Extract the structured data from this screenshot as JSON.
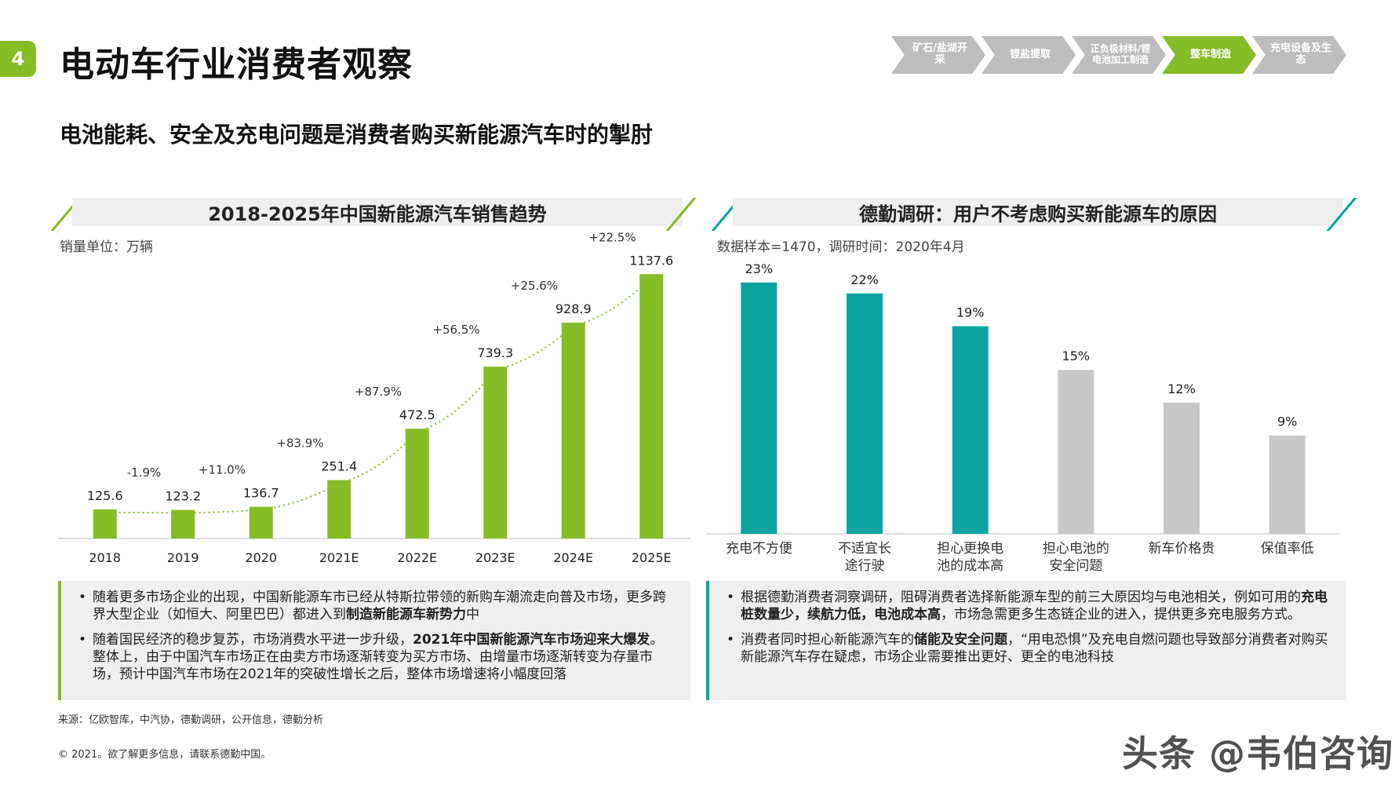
{
  "header": {
    "section_number": "4",
    "title": "电动车行业消费者观察",
    "subtitle": "电池能耗、安全及充电问题是消费者购买新能源汽车时的掣肘"
  },
  "process_steps": [
    {
      "label": "矿石/盐湖开采",
      "active": false
    },
    {
      "label": "锂盐提取",
      "active": false
    },
    {
      "label": "正负极材料/锂电池加工制造",
      "active": false
    },
    {
      "label": "整车制造",
      "active": true
    },
    {
      "label": "充电设备及生态",
      "active": false
    }
  ],
  "left_panel": {
    "title": "2018-2025年中国新能源汽车销售趋势",
    "unit_note": "销量单位：万辆",
    "notes": [
      {
        "pre": "随着更多市场企业的出现，中国新能源车市已经从特斯拉带领的新购车潮流走向普及市场，更多跨界大型企业（如恒大、阿里巴巴）都进入到",
        "bold": "制造新能源车新势力",
        "post": "中"
      },
      {
        "pre": "随着国民经济的稳步复苏，市场消费水平进一步升级，",
        "bold": "2021年中国新能源汽车市场迎来大爆发",
        "post": "。整体上，由于中国汽车市场正在由卖方市场逐渐转变为买方市场、由增量市场逐渐转变为存量市场，预计中国汽车市场在2021年的突破性增长之后，整体市场增速将小幅度回落"
      }
    ]
  },
  "right_panel": {
    "title": "德勤调研：用户不考虑购买新能源车的原因",
    "sample_note": "数据样本=1470，调研时间：2020年4月",
    "notes": [
      {
        "pre": "根据德勤消费者洞察调研，阻碍消费者选择新能源车型的前三大原因均与电池相关，例如可用的",
        "bold": "充电桩数量少，续航力低，电池成本高",
        "post": "，市场急需更多生态链企业的进入，提供更多充电服务方式。"
      },
      {
        "pre": "消费者同时担心新能源汽车的",
        "bold": "储能及安全问题",
        "post": "，“用电恐惧”及充电自燃问题也导致部分消费者对购买新能源汽车存在疑虑，市场企业需要推出更好、更全的电池科技"
      }
    ]
  },
  "chart_data": [
    {
      "type": "bar",
      "title": "2018-2025年中国新能源汽车销售趋势",
      "categories": [
        "2018",
        "2019",
        "2020",
        "2021E",
        "2022E",
        "2023E",
        "2024E",
        "2025E"
      ],
      "values": [
        125.6,
        123.2,
        136.7,
        251.4,
        472.5,
        739.3,
        928.9,
        1137.6
      ],
      "value_labels": [
        "125.6",
        "123.2",
        "136.7",
        "251.4",
        "472.5",
        "739.3",
        "928.9",
        "1137.6"
      ],
      "growth_labels": [
        "-1.9%",
        "+11.0%",
        "+83.9%",
        "+87.9%",
        "+56.5%",
        "+25.6%",
        "+22.5%"
      ],
      "trendline": "dotted",
      "ylim": [
        0,
        1250
      ],
      "grid": false,
      "color": "#86bc25"
    },
    {
      "type": "bar",
      "title": "德勤调研：用户不考虑购买新能源车的原因",
      "categories": [
        "充电不方便",
        "不适宜长途行驶",
        "担心更换电池的成本高",
        "担心电池的安全问题",
        "新车价格贵",
        "保值率低"
      ],
      "category_lines": [
        [
          "充电不方便"
        ],
        [
          "不适宜长",
          "途行驶"
        ],
        [
          "担心更换电",
          "池的成本高"
        ],
        [
          "担心电池的",
          "安全问题"
        ],
        [
          "新车价格贵"
        ],
        [
          "保值率低"
        ]
      ],
      "values": [
        23,
        22,
        19,
        15,
        12,
        9
      ],
      "value_labels": [
        "23%",
        "22%",
        "19%",
        "15%",
        "12%",
        "9%"
      ],
      "ylim": [
        0,
        25
      ],
      "grid": false,
      "colors": [
        "#0ba4a0",
        "#0ba4a0",
        "#0ba4a0",
        "#c8c8c8",
        "#c8c8c8",
        "#c8c8c8"
      ]
    }
  ],
  "footer": {
    "source": "来源：亿欧智库，中汽协，德勤调研，公开信息，德勤分析",
    "copyright": "© 2021。欲了解更多信息，请联系德勤中国。",
    "watermark": "头条 @韦伯咨询"
  },
  "colors": {
    "green": "#86bc25",
    "teal": "#0ba4a0",
    "gray": "#c8c8c8"
  }
}
